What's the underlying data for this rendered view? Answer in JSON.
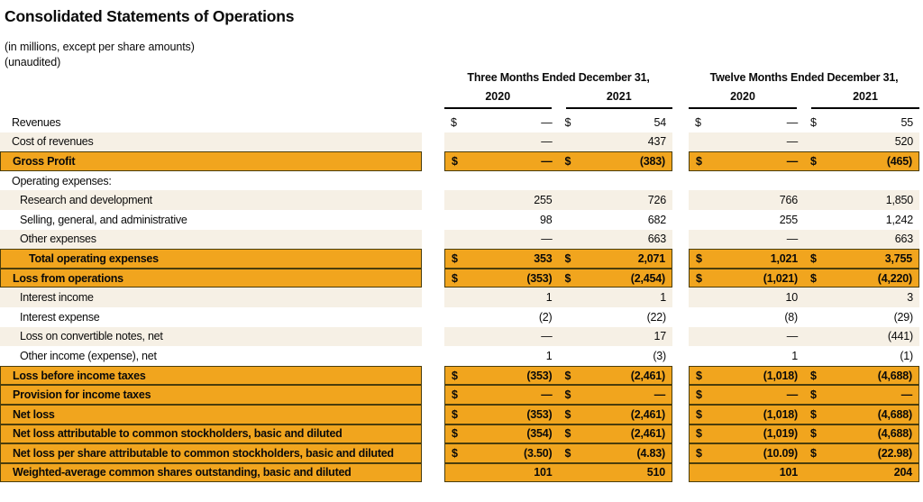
{
  "title": "Consolidated Statements of Operations",
  "subtitle_units": "(in millions, except per share amounts)",
  "subtitle_unaudited": "(unaudited)",
  "colors": {
    "highlight": "#F1A51E",
    "stripe": "#F6F0E5",
    "border": "#4A3D0C"
  },
  "columns": [
    {
      "title": "Three Months Ended December 31,",
      "years": [
        "2020",
        "2021"
      ]
    },
    {
      "title": "Twelve Months Ended December 31,",
      "years": [
        "2020",
        "2021"
      ]
    }
  ],
  "rows": [
    {
      "label": "Revenues",
      "indent": 0,
      "style": "plain",
      "cells": [
        [
          "$",
          "—"
        ],
        [
          "$",
          "54"
        ],
        [
          "$",
          "—"
        ],
        [
          "$",
          "55"
        ]
      ]
    },
    {
      "label": "Cost of revenues",
      "indent": 0,
      "style": "stripe",
      "cells": [
        [
          "",
          "—"
        ],
        [
          "",
          "437"
        ],
        [
          "",
          "—"
        ],
        [
          "",
          "520"
        ]
      ]
    },
    {
      "label": "Gross Profit",
      "indent": 0,
      "style": "highlight",
      "cells": [
        [
          "$",
          "—"
        ],
        [
          "$",
          "(383)"
        ],
        [
          "$",
          "—"
        ],
        [
          "$",
          "(465)"
        ]
      ]
    },
    {
      "label": "Operating expenses:",
      "indent": 0,
      "style": "plain",
      "cells": []
    },
    {
      "label": "Research and development",
      "indent": 1,
      "style": "stripe",
      "cells": [
        [
          "",
          "255"
        ],
        [
          "",
          "726"
        ],
        [
          "",
          "766"
        ],
        [
          "",
          "1,850"
        ]
      ]
    },
    {
      "label": "Selling, general, and administrative",
      "indent": 1,
      "style": "plain",
      "cells": [
        [
          "",
          "98"
        ],
        [
          "",
          "682"
        ],
        [
          "",
          "255"
        ],
        [
          "",
          "1,242"
        ]
      ]
    },
    {
      "label": "Other expenses",
      "indent": 1,
      "style": "stripe",
      "cells": [
        [
          "",
          "—"
        ],
        [
          "",
          "663"
        ],
        [
          "",
          "—"
        ],
        [
          "",
          "663"
        ]
      ]
    },
    {
      "label": "Total operating expenses",
      "indent": 2,
      "style": "highlight",
      "cells": [
        [
          "$",
          "353"
        ],
        [
          "$",
          "2,071"
        ],
        [
          "$",
          "1,021"
        ],
        [
          "$",
          "3,755"
        ]
      ]
    },
    {
      "label": "Loss from operations",
      "indent": 0,
      "style": "highlight",
      "cells": [
        [
          "$",
          "(353)"
        ],
        [
          "$",
          "(2,454)"
        ],
        [
          "$",
          "(1,021)"
        ],
        [
          "$",
          "(4,220)"
        ]
      ]
    },
    {
      "label": "Interest income",
      "indent": 1,
      "style": "stripe",
      "cells": [
        [
          "",
          "1"
        ],
        [
          "",
          "1"
        ],
        [
          "",
          "10"
        ],
        [
          "",
          "3"
        ]
      ]
    },
    {
      "label": "Interest expense",
      "indent": 1,
      "style": "plain",
      "cells": [
        [
          "",
          "(2)"
        ],
        [
          "",
          "(22)"
        ],
        [
          "",
          "(8)"
        ],
        [
          "",
          "(29)"
        ]
      ]
    },
    {
      "label": "Loss on convertible notes, net",
      "indent": 1,
      "style": "stripe",
      "cells": [
        [
          "",
          "—"
        ],
        [
          "",
          "17"
        ],
        [
          "",
          "—"
        ],
        [
          "",
          "(441)"
        ]
      ]
    },
    {
      "label": "Other income (expense), net",
      "indent": 1,
      "style": "plain",
      "cells": [
        [
          "",
          "1"
        ],
        [
          "",
          "(3)"
        ],
        [
          "",
          "1"
        ],
        [
          "",
          "(1)"
        ]
      ]
    },
    {
      "label": "Loss before income taxes",
      "indent": 0,
      "style": "highlight",
      "cells": [
        [
          "$",
          "(353)"
        ],
        [
          "$",
          "(2,461)"
        ],
        [
          "$",
          "(1,018)"
        ],
        [
          "$",
          "(4,688)"
        ]
      ]
    },
    {
      "label": "Provision for income taxes",
      "indent": 0,
      "style": "highlight",
      "cells": [
        [
          "$",
          "—"
        ],
        [
          "$",
          "—"
        ],
        [
          "$",
          "—"
        ],
        [
          "$",
          "—"
        ]
      ]
    },
    {
      "label": "Net loss",
      "indent": 0,
      "style": "highlight",
      "cells": [
        [
          "$",
          "(353)"
        ],
        [
          "$",
          "(2,461)"
        ],
        [
          "$",
          "(1,018)"
        ],
        [
          "$",
          "(4,688)"
        ]
      ]
    },
    {
      "label": "Net loss attributable to common stockholders, basic and diluted",
      "indent": 0,
      "style": "highlight",
      "cells": [
        [
          "$",
          "(354)"
        ],
        [
          "$",
          "(2,461)"
        ],
        [
          "$",
          "(1,019)"
        ],
        [
          "$",
          "(4,688)"
        ]
      ]
    },
    {
      "label": "Net loss per share attributable to common stockholders, basic and diluted",
      "indent": 0,
      "style": "highlight",
      "cells": [
        [
          "$",
          "(3.50)"
        ],
        [
          "$",
          "(4.83)"
        ],
        [
          "$",
          "(10.09)"
        ],
        [
          "$",
          "(22.98)"
        ]
      ]
    },
    {
      "label": "Weighted-average common shares outstanding, basic and diluted",
      "indent": 0,
      "style": "highlight",
      "cells": [
        [
          "",
          "101"
        ],
        [
          "",
          "510"
        ],
        [
          "",
          "101"
        ],
        [
          "",
          "204"
        ]
      ]
    }
  ]
}
